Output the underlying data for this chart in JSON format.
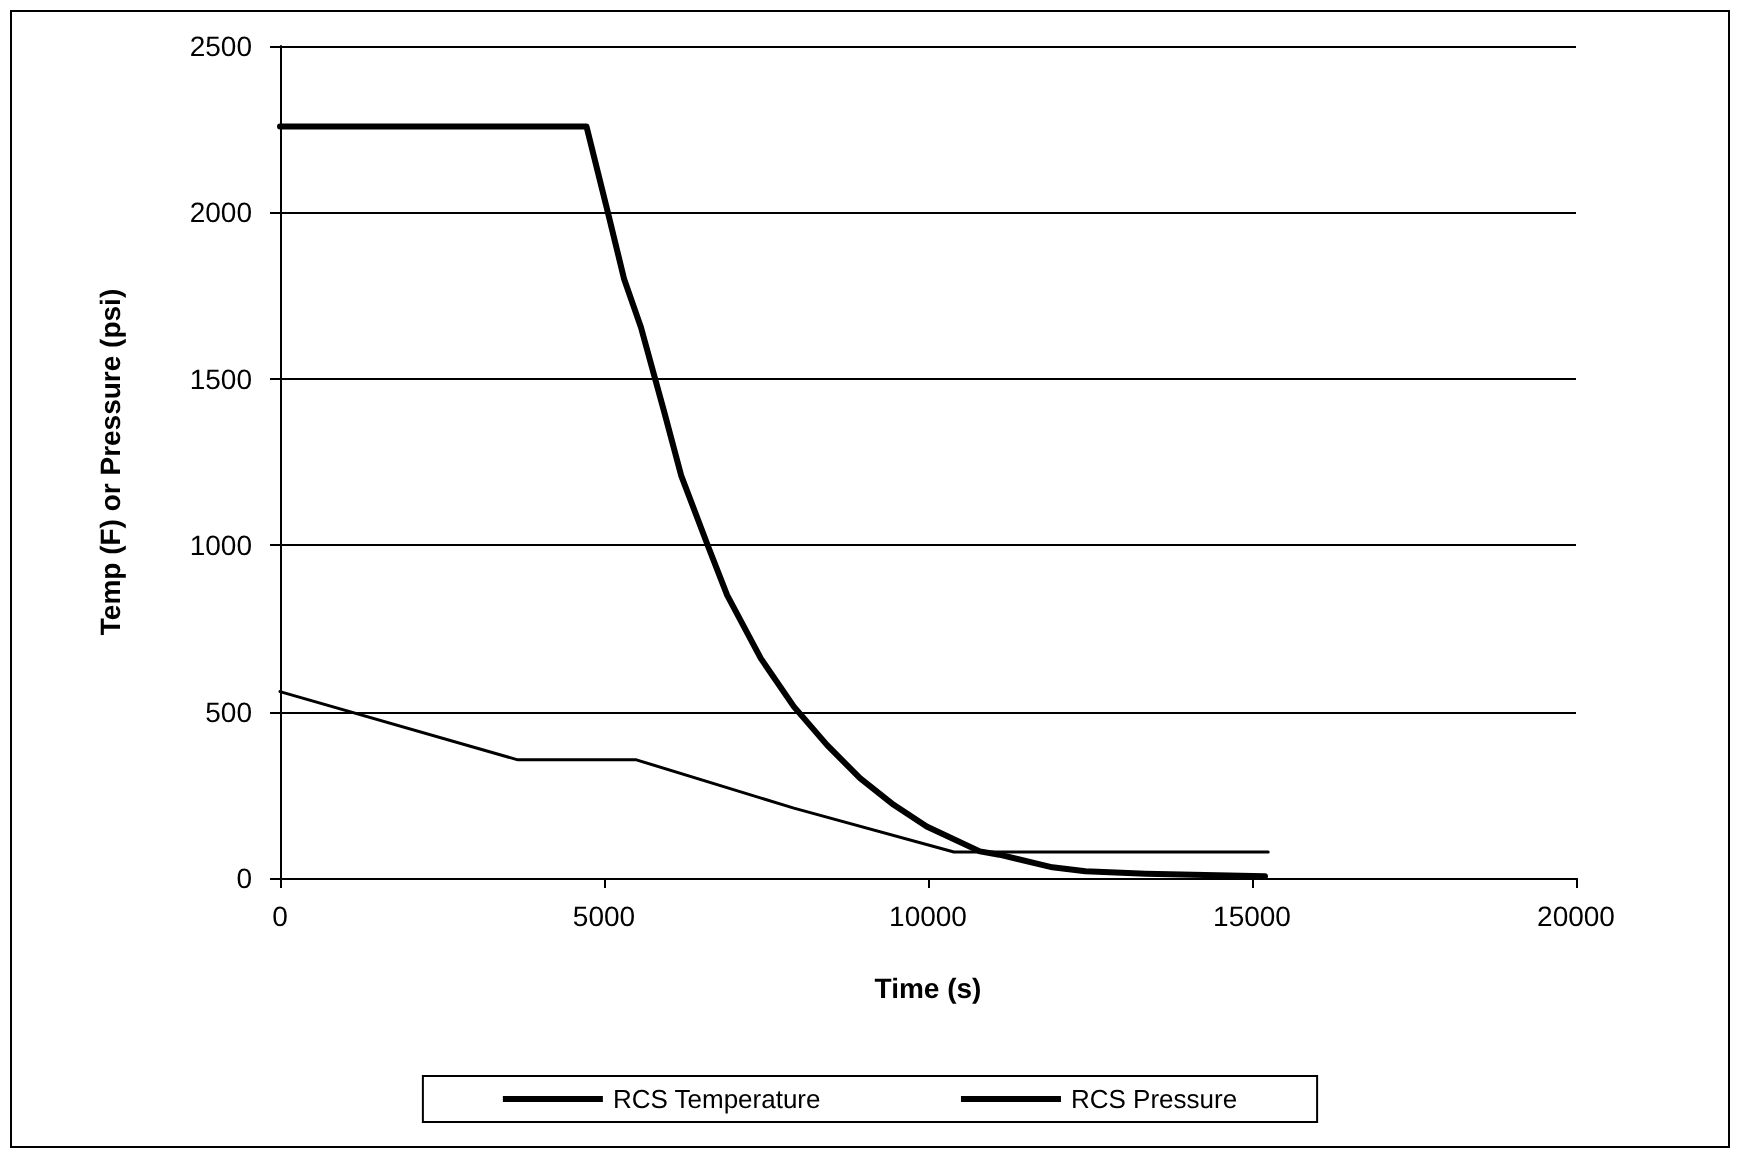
{
  "chart_data": {
    "type": "line",
    "xlabel": "Time (s)",
    "ylabel": "Temp (F) or Pressure (psi)",
    "xlim": [
      0,
      20000
    ],
    "xticks": [
      0,
      5000,
      10000,
      15000,
      20000
    ],
    "ylim": [
      0,
      2500
    ],
    "yticks": [
      0,
      500,
      1000,
      1500,
      2000,
      2500
    ],
    "grid": "y",
    "legend": "bottom",
    "marker": "none",
    "line_style": "solid",
    "series": [
      {
        "name": "RCS Temperature",
        "color": "#000000",
        "x": [
          0,
          3670,
          5500,
          7930,
          10400,
          15250
        ],
        "values": [
          560,
          355,
          355,
          210,
          78,
          78
        ]
      },
      {
        "name": "RCS Pressure",
        "color": "#000000",
        "x": [
          0,
          4730,
          5060,
          5310,
          5570,
          5930,
          6190,
          6600,
          6900,
          7420,
          7930,
          8440,
          8950,
          9470,
          9980,
          10800,
          11100,
          11920,
          12430,
          13360,
          15200
        ],
        "values": [
          2258,
          2258,
          2000,
          1800,
          1655,
          1400,
          1210,
          1000,
          850,
          660,
          515,
          400,
          300,
          220,
          155,
          80,
          70,
          32,
          20,
          13,
          5
        ]
      }
    ]
  }
}
